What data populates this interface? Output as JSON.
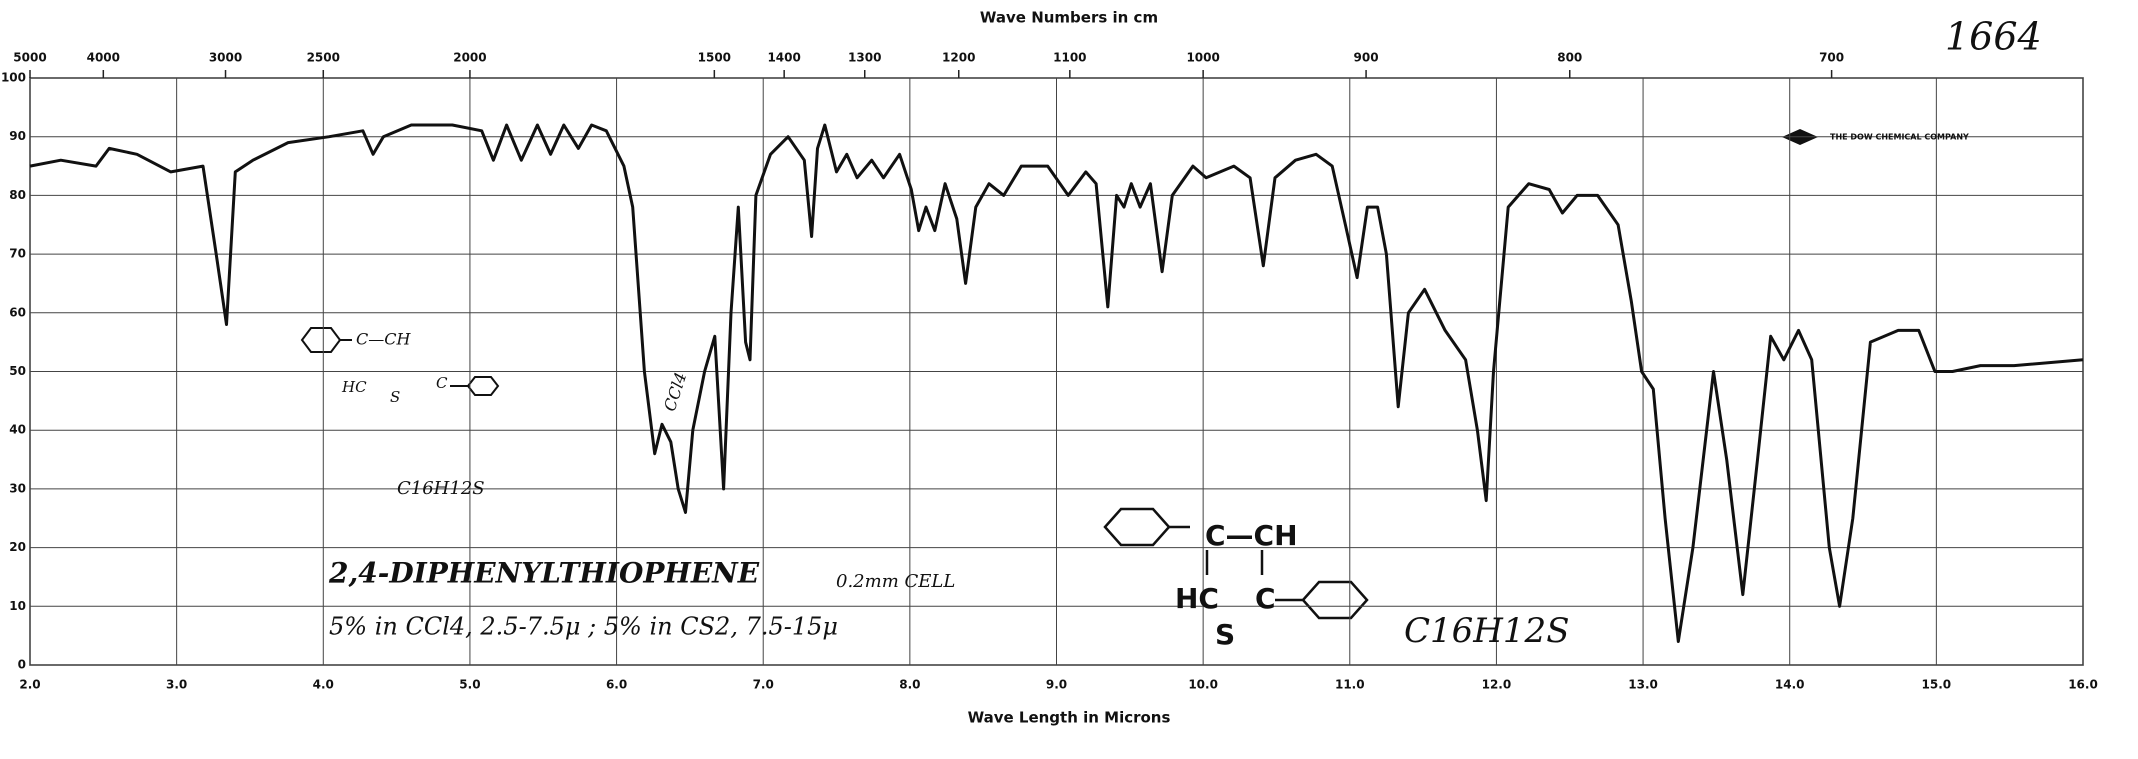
{
  "chart_data": {
    "type": "line",
    "title": "Wave Numbers in cm",
    "x_label": "Wave Length in Microns",
    "x": [
      2.0,
      2.21,
      2.45,
      2.54,
      2.73,
      2.96,
      3.18,
      3.27,
      3.34,
      3.4,
      3.52,
      3.76,
      4.04,
      4.27,
      4.34,
      4.41,
      4.6,
      4.88,
      5.08,
      5.16,
      5.25,
      5.35,
      5.46,
      5.55,
      5.64,
      5.74,
      5.83,
      5.93,
      6.05,
      6.11,
      6.19,
      6.26,
      6.31,
      6.37,
      6.42,
      6.47,
      6.52,
      6.6,
      6.67,
      6.73,
      6.78,
      6.83,
      6.88,
      6.91,
      6.95,
      7.05,
      7.17,
      7.28,
      7.33,
      7.37,
      7.42,
      7.5,
      7.57,
      7.64,
      7.74,
      7.82,
      7.93,
      8.01,
      8.06,
      8.11,
      8.17,
      8.24,
      8.32,
      8.38,
      8.45,
      8.54,
      8.64,
      8.76,
      8.94,
      9.08,
      9.2,
      9.27,
      9.35,
      9.41,
      9.46,
      9.51,
      9.57,
      9.64,
      9.72,
      9.79,
      9.93,
      10.02,
      10.21,
      10.32,
      10.41,
      10.49,
      10.63,
      10.77,
      10.88,
      10.97,
      11.05,
      11.12,
      11.19,
      11.25,
      11.33,
      11.4,
      11.51,
      11.65,
      11.79,
      11.87,
      11.93,
      11.98,
      12.08,
      12.22,
      12.36,
      12.45,
      12.55,
      12.69,
      12.83,
      12.92,
      12.99,
      13.07,
      13.15,
      13.24,
      13.34,
      13.48,
      13.57,
      13.68,
      13.78,
      13.87,
      13.96,
      14.06,
      14.15,
      14.27,
      14.34,
      14.43,
      14.55,
      14.74,
      14.88,
      14.99,
      15.11,
      15.3,
      15.53,
      16.0
    ],
    "series": [
      {
        "name": "2,4-Diphenylthiophene",
        "color": "#111111",
        "values": [
          85,
          86,
          85,
          88,
          87,
          84,
          85,
          70,
          58,
          84,
          86,
          89,
          90,
          91,
          87,
          90,
          92,
          92,
          91,
          86,
          92,
          86,
          92,
          87,
          92,
          88,
          92,
          91,
          85,
          78,
          50,
          36,
          41,
          38,
          30,
          26,
          40,
          50,
          56,
          30,
          60,
          78,
          55,
          52,
          80,
          87,
          90,
          86,
          73,
          88,
          92,
          84,
          87,
          83,
          86,
          83,
          87,
          81,
          74,
          78,
          74,
          82,
          76,
          65,
          78,
          82,
          80,
          85,
          85,
          80,
          84,
          82,
          61,
          80,
          78,
          82,
          78,
          82,
          67,
          80,
          85,
          83,
          85,
          83,
          68,
          83,
          86,
          87,
          85,
          75,
          66,
          78,
          78,
          70,
          44,
          60,
          64,
          57,
          52,
          40,
          28,
          50,
          78,
          82,
          81,
          77,
          80,
          80,
          75,
          62,
          50,
          47,
          25,
          4,
          20,
          50,
          35,
          12,
          35,
          56,
          52,
          57,
          52,
          20,
          10,
          25,
          55,
          57,
          57,
          50,
          50,
          51,
          51,
          52
        ]
      }
    ],
    "xlim": [
      2,
      16
    ],
    "ylim": [
      0,
      100
    ],
    "xticks": [
      {
        "value": 2,
        "label": "2.0"
      },
      {
        "value": 3,
        "label": "3.0"
      },
      {
        "value": 4,
        "label": "4.0"
      },
      {
        "value": 5,
        "label": "5.0"
      },
      {
        "value": 6,
        "label": "6.0"
      },
      {
        "value": 7,
        "label": "7.0"
      },
      {
        "value": 8,
        "label": "8.0"
      },
      {
        "value": 9,
        "label": "9.0"
      },
      {
        "value": 10,
        "label": "10.0"
      },
      {
        "value": 11,
        "label": "11.0"
      },
      {
        "value": 12,
        "label": "12.0"
      },
      {
        "value": 13,
        "label": "13.0"
      },
      {
        "value": 14,
        "label": "14.0"
      },
      {
        "value": 15,
        "label": "15.0"
      },
      {
        "value": 16,
        "label": "16.0"
      }
    ],
    "yticks": [
      0,
      10,
      20,
      30,
      40,
      50,
      60,
      70,
      80,
      90,
      100
    ],
    "x2ticks": [
      5000,
      4000,
      3000,
      2500,
      2000,
      1500,
      1400,
      1300,
      1200,
      1100,
      1000,
      900,
      800,
      700
    ],
    "grid": true,
    "annotations": [
      "1664",
      "THE DOW CHEMICAL COMPANY",
      "2,4-DIPHENYLTHIOPHENE",
      "0.2mm CELL",
      "5% in CCl4, 2.5-7.5μ ; 5% in CS2, 7.5-15μ",
      "C16H12S",
      "C16H12S",
      "CCl4",
      "C—CH",
      "HC",
      "C",
      "S",
      "C—CH",
      "HC",
      "C",
      "S"
    ]
  }
}
